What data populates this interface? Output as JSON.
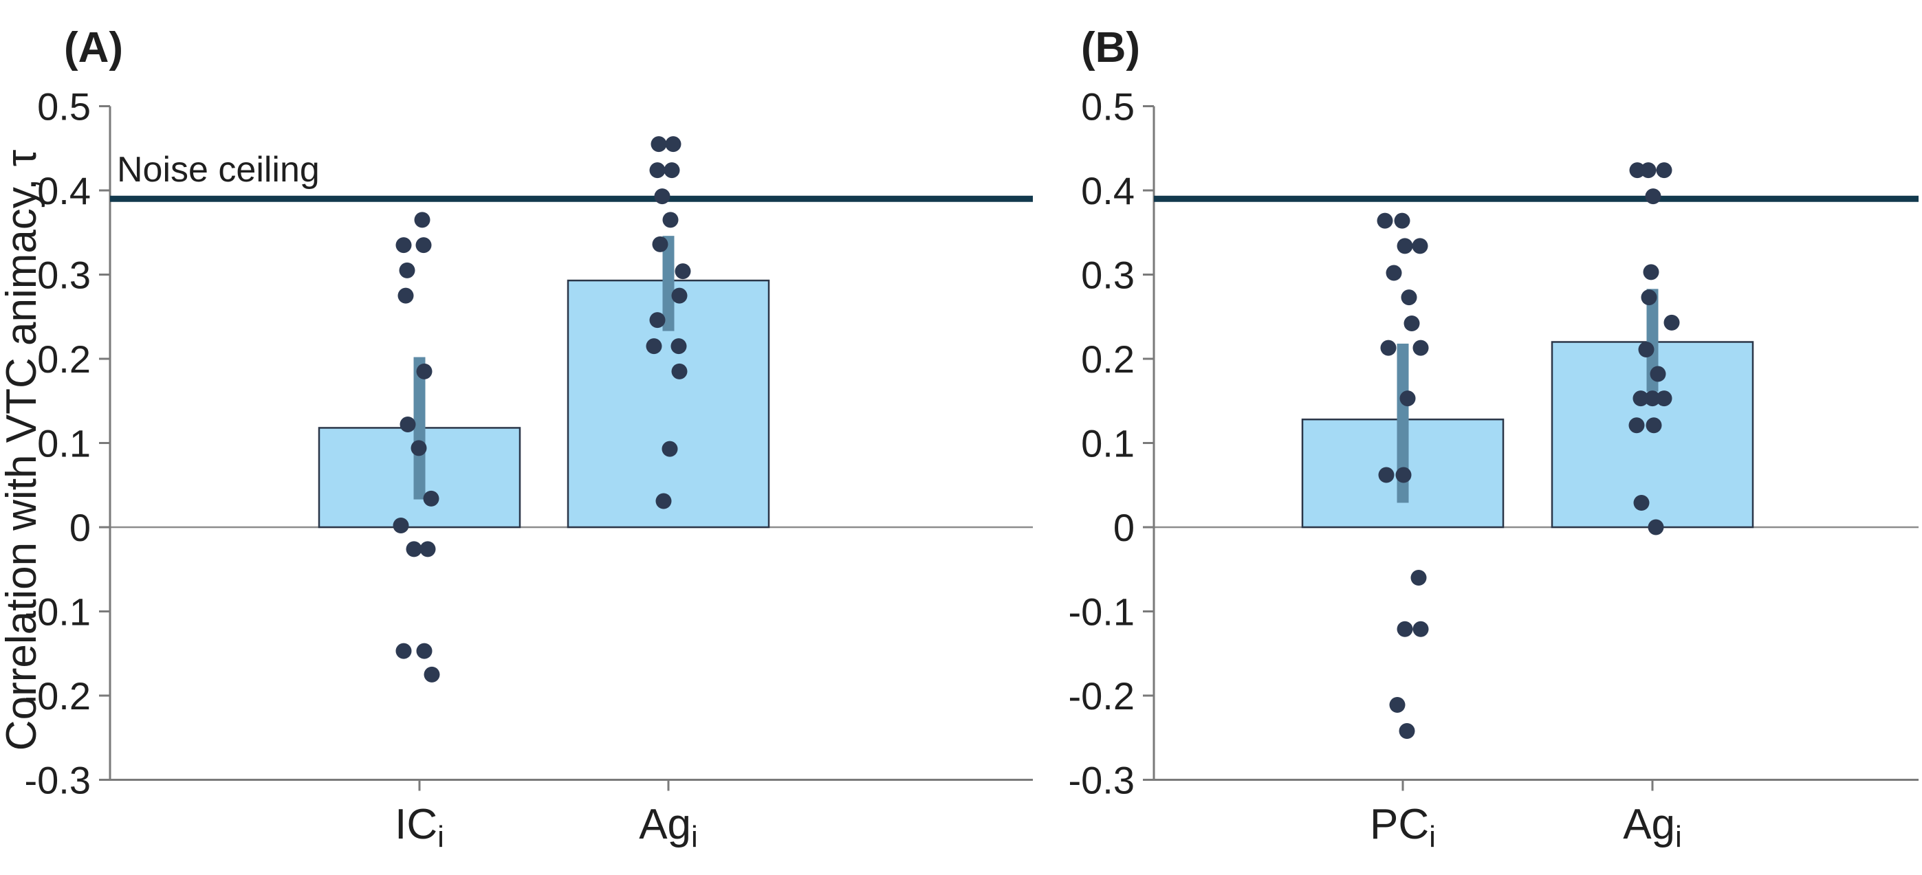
{
  "figure": {
    "panel_titles": {
      "a": "(A)",
      "b": "(B)"
    },
    "ylabel": "Correlation with VTC animacy, τ",
    "noise_ceiling_label": "Noise ceiling",
    "colors": {
      "bar_fill": "#a5daf5",
      "bar_edge": "#2b3648",
      "error_bar": "#5d8ba6",
      "point": "#2d3a52",
      "noise_ceiling_line": "#12394d",
      "axis": "#7a7a7a",
      "zero_line": "#8c8c8c",
      "text": "#1f1f1f"
    }
  },
  "chart_data": [
    {
      "type": "bar",
      "panel": "A",
      "title": "(A)",
      "ylabel": "Correlation with VTC animacy, τ",
      "ylim": [
        -0.3,
        0.5
      ],
      "grid": false,
      "noise_ceiling": 0.39,
      "y_ticks": [
        {
          "v": 0.5,
          "label": "0.5"
        },
        {
          "v": 0.4,
          "label": "0.4"
        },
        {
          "v": 0.3,
          "label": "0.3"
        },
        {
          "v": 0.2,
          "label": "0.2"
        },
        {
          "v": 0.1,
          "label": "0.1"
        },
        {
          "v": 0.0,
          "label": "0"
        },
        {
          "v": -0.1,
          "label": "-0.1"
        },
        {
          "v": -0.2,
          "label": "-0.2"
        },
        {
          "v": -0.3,
          "label": "-0.3"
        }
      ],
      "categories": [
        {
          "main": "IC",
          "sub": "i"
        },
        {
          "main": "Ag",
          "sub": "i"
        }
      ],
      "series": [
        {
          "category": "ICi",
          "bar_mean": 0.118,
          "err": [
            0.033,
            0.202
          ],
          "points": [
            {
              "v": 0.365,
              "dx": 4
            },
            {
              "v": 0.335,
              "dx": -23
            },
            {
              "v": 0.335,
              "dx": 6
            },
            {
              "v": 0.305,
              "dx": -18
            },
            {
              "v": 0.275,
              "dx": -20
            },
            {
              "v": 0.185,
              "dx": 7
            },
            {
              "v": 0.122,
              "dx": -17
            },
            {
              "v": 0.094,
              "dx": -1
            },
            {
              "v": 0.034,
              "dx": 17
            },
            {
              "v": 0.002,
              "dx": -27
            },
            {
              "v": -0.026,
              "dx": -8
            },
            {
              "v": -0.026,
              "dx": 12
            },
            {
              "v": -0.147,
              "dx": -23
            },
            {
              "v": -0.147,
              "dx": 7
            },
            {
              "v": -0.175,
              "dx": 18
            }
          ]
        },
        {
          "category": "Agi",
          "bar_mean": 0.293,
          "err": [
            0.233,
            0.346
          ],
          "points": [
            {
              "v": 0.455,
              "dx": -14
            },
            {
              "v": 0.455,
              "dx": 7
            },
            {
              "v": 0.424,
              "dx": -16
            },
            {
              "v": 0.424,
              "dx": 5
            },
            {
              "v": 0.393,
              "dx": -9
            },
            {
              "v": 0.365,
              "dx": 3
            },
            {
              "v": 0.336,
              "dx": -12
            },
            {
              "v": 0.304,
              "dx": 21
            },
            {
              "v": 0.275,
              "dx": 16
            },
            {
              "v": 0.246,
              "dx": -16
            },
            {
              "v": 0.215,
              "dx": -21
            },
            {
              "v": 0.215,
              "dx": 15
            },
            {
              "v": 0.185,
              "dx": 16
            },
            {
              "v": 0.093,
              "dx": 2
            },
            {
              "v": 0.031,
              "dx": -7
            }
          ]
        }
      ]
    },
    {
      "type": "bar",
      "panel": "B",
      "title": "(B)",
      "ylabel": "Correlation with VTC animacy, τ",
      "ylim": [
        -0.3,
        0.5
      ],
      "grid": false,
      "noise_ceiling": 0.39,
      "y_ticks": [
        {
          "v": 0.5,
          "label": "0.5"
        },
        {
          "v": 0.4,
          "label": "0.4"
        },
        {
          "v": 0.3,
          "label": "0.3"
        },
        {
          "v": 0.2,
          "label": "0.2"
        },
        {
          "v": 0.1,
          "label": "0.1"
        },
        {
          "v": 0.0,
          "label": "0"
        },
        {
          "v": -0.1,
          "label": "-0.1"
        },
        {
          "v": -0.2,
          "label": "-0.2"
        },
        {
          "v": -0.3,
          "label": "-0.3"
        }
      ],
      "categories": [
        {
          "main": "PC",
          "sub": "i"
        },
        {
          "main": "Ag",
          "sub": "i"
        }
      ],
      "series": [
        {
          "category": "PCi",
          "bar_mean": 0.128,
          "err": [
            0.029,
            0.218
          ],
          "points": [
            {
              "v": 0.364,
              "dx": -26
            },
            {
              "v": 0.364,
              "dx": -1
            },
            {
              "v": 0.334,
              "dx": 3
            },
            {
              "v": 0.334,
              "dx": 25
            },
            {
              "v": 0.302,
              "dx": -13
            },
            {
              "v": 0.273,
              "dx": 9
            },
            {
              "v": 0.242,
              "dx": 13
            },
            {
              "v": 0.213,
              "dx": -21
            },
            {
              "v": 0.213,
              "dx": 26
            },
            {
              "v": 0.153,
              "dx": 7
            },
            {
              "v": 0.062,
              "dx": -24
            },
            {
              "v": 0.062,
              "dx": 1
            },
            {
              "v": -0.06,
              "dx": 23
            },
            {
              "v": -0.121,
              "dx": 3
            },
            {
              "v": -0.121,
              "dx": 26
            },
            {
              "v": -0.211,
              "dx": -8
            },
            {
              "v": -0.242,
              "dx": 6
            }
          ]
        },
        {
          "category": "Agi",
          "bar_mean": 0.22,
          "err": [
            0.161,
            0.283
          ],
          "points": [
            {
              "v": 0.424,
              "dx": -22
            },
            {
              "v": 0.424,
              "dx": -6
            },
            {
              "v": 0.424,
              "dx": 17
            },
            {
              "v": 0.393,
              "dx": 1
            },
            {
              "v": 0.303,
              "dx": -2
            },
            {
              "v": 0.273,
              "dx": -5
            },
            {
              "v": 0.243,
              "dx": 28
            },
            {
              "v": 0.211,
              "dx": -9
            },
            {
              "v": 0.182,
              "dx": 8
            },
            {
              "v": 0.153,
              "dx": -17
            },
            {
              "v": 0.153,
              "dx": 0
            },
            {
              "v": 0.153,
              "dx": 17
            },
            {
              "v": 0.121,
              "dx": -23
            },
            {
              "v": 0.121,
              "dx": 2
            },
            {
              "v": 0.029,
              "dx": -16
            },
            {
              "v": 0.0,
              "dx": 5
            }
          ]
        }
      ]
    }
  ]
}
